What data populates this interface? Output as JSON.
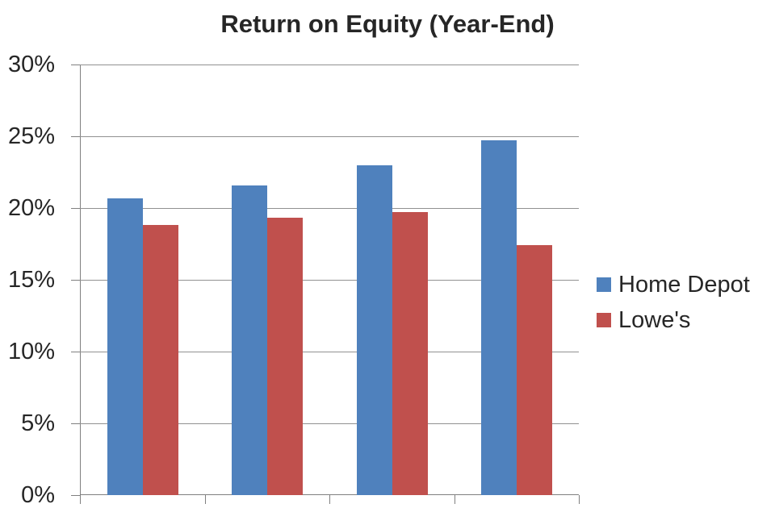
{
  "chart_data": {
    "type": "bar",
    "title": "Return on Equity (Year-End)",
    "categories": [
      "",
      "",
      "",
      ""
    ],
    "series": [
      {
        "name": "Home Depot",
        "color": "#4F81BD",
        "values": [
          20.7,
          21.6,
          23.0,
          24.7
        ]
      },
      {
        "name": "Lowe's",
        "color": "#C0504D",
        "values": [
          18.8,
          19.3,
          19.7,
          17.4
        ]
      }
    ],
    "xlabel": "",
    "ylabel": "",
    "ylim": [
      0,
      30
    ],
    "ytick_step": 5,
    "ytick_labels": [
      "0%",
      "5%",
      "10%",
      "15%",
      "20%",
      "25%",
      "30%"
    ],
    "grid": true,
    "legend_position": "right",
    "colors": {
      "axis": "#808080",
      "gridline": "#919191",
      "text": "#262626",
      "background": "#ffffff"
    }
  }
}
